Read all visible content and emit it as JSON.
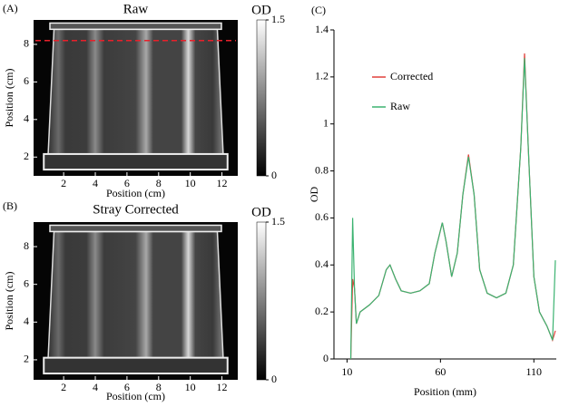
{
  "chart_data": [
    {
      "type": "image",
      "panel_label": "(A)",
      "title": "Raw",
      "x_label": "Position (cm)",
      "y_label": "Position (cm)",
      "xlim": [
        0.1,
        13
      ],
      "ylim": [
        1,
        9.3
      ],
      "xticks": [
        2,
        4,
        6,
        8,
        10,
        12
      ],
      "yticks": [
        2,
        4,
        6,
        8
      ],
      "colorbar_label": "OD",
      "clim": [
        0,
        1.5
      ],
      "colorbar_ticks": [
        0,
        1.5
      ],
      "profile_y": 8.2,
      "profile_color": "#e8202a"
    },
    {
      "type": "image",
      "panel_label": "(B)",
      "title": "Stray Corrected",
      "x_label": "Position (cm)",
      "y_label": "Position (cm)",
      "xlim": [
        0.1,
        13
      ],
      "ylim": [
        0.94,
        9.3
      ],
      "xticks": [
        2,
        4,
        6,
        8,
        10,
        12
      ],
      "yticks": [
        2,
        4,
        6,
        8
      ],
      "colorbar_label": "OD",
      "clim": [
        0,
        1.5
      ],
      "colorbar_ticks": [
        0,
        1.5
      ]
    },
    {
      "type": "line",
      "panel_label": "(C)",
      "x_label": "Position (mm)",
      "y_label": "OD",
      "xlim": [
        3,
        122
      ],
      "ylim": [
        0,
        1.4
      ],
      "xticks": [
        10,
        60,
        110
      ],
      "yticks": [
        0,
        0.2,
        0.4,
        0.6,
        0.8,
        1,
        1.2,
        1.4
      ],
      "x": [
        12,
        13,
        14,
        15,
        17,
        22,
        27,
        31,
        33,
        36,
        39,
        44,
        49,
        54,
        57,
        61,
        63,
        66,
        69,
        72,
        75,
        78,
        81,
        85,
        90,
        95,
        99,
        103,
        105,
        107,
        110,
        113,
        117,
        120,
        121.5
      ],
      "series": [
        {
          "name": "Corrected",
          "color": "#e0403a",
          "values": [
            0,
            0.34,
            0.3,
            0.15,
            0.2,
            0.23,
            0.27,
            0.38,
            0.4,
            0.34,
            0.29,
            0.28,
            0.29,
            0.32,
            0.45,
            0.58,
            0.5,
            0.35,
            0.45,
            0.7,
            0.87,
            0.7,
            0.38,
            0.28,
            0.26,
            0.28,
            0.4,
            0.9,
            1.3,
            0.9,
            0.35,
            0.2,
            0.14,
            0.08,
            0.12
          ]
        },
        {
          "name": "Raw",
          "color": "#3cb371",
          "values": [
            0,
            0.6,
            0.3,
            0.15,
            0.2,
            0.23,
            0.27,
            0.38,
            0.4,
            0.34,
            0.29,
            0.28,
            0.29,
            0.32,
            0.45,
            0.58,
            0.5,
            0.35,
            0.45,
            0.7,
            0.86,
            0.7,
            0.38,
            0.28,
            0.26,
            0.28,
            0.4,
            0.9,
            1.28,
            0.9,
            0.35,
            0.2,
            0.14,
            0.08,
            0.42
          ]
        }
      ]
    }
  ]
}
